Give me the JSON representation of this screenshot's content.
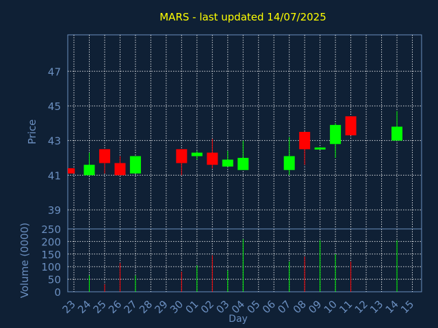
{
  "chart_data": [
    {
      "type": "candlestick",
      "title": "MARS - last updated 14/07/2025",
      "ylabel": "Price",
      "ylim": [
        37.9,
        49.1
      ],
      "yticks": [
        39,
        41,
        43,
        45,
        47
      ],
      "grid": true,
      "colors": {
        "up": "#00ff00",
        "down": "#ff0000",
        "title": "#ffff00",
        "label": "#6b8fc0",
        "background": "#0f2035",
        "grid": "#ffffff"
      },
      "candles": [
        {
          "x": 22.7,
          "open": 41.4,
          "high": 41.4,
          "low": 41.1,
          "close": 41.1
        },
        {
          "x": 24,
          "open": 41.0,
          "high": 42.3,
          "low": 41.0,
          "close": 41.6
        },
        {
          "x": 25,
          "open": 42.5,
          "high": 42.5,
          "low": 41.1,
          "close": 41.7
        },
        {
          "x": 26,
          "open": 41.7,
          "high": 42.1,
          "low": 41.0,
          "close": 41.0
        },
        {
          "x": 27,
          "open": 41.1,
          "high": 42.1,
          "low": 41.1,
          "close": 42.1
        },
        {
          "x": 30,
          "open": 42.5,
          "high": 42.5,
          "low": 41.0,
          "close": 41.7
        },
        {
          "x": 31,
          "open": 42.1,
          "high": 42.4,
          "low": 41.9,
          "close": 42.3
        },
        {
          "x": 32,
          "open": 42.3,
          "high": 43.1,
          "low": 41.4,
          "close": 41.6
        },
        {
          "x": 33,
          "open": 41.5,
          "high": 42.4,
          "low": 41.5,
          "close": 41.9
        },
        {
          "x": 34,
          "open": 41.3,
          "high": 43.0,
          "low": 41.3,
          "close": 42.0
        },
        {
          "x": 37,
          "open": 41.3,
          "high": 43.2,
          "low": 41.0,
          "close": 42.1
        },
        {
          "x": 38,
          "open": 43.5,
          "high": 43.5,
          "low": 41.6,
          "close": 42.5
        },
        {
          "x": 39,
          "open": 42.5,
          "high": 42.6,
          "low": 42.5,
          "close": 42.6
        },
        {
          "x": 40,
          "open": 42.8,
          "high": 44.0,
          "low": 42.0,
          "close": 43.9
        },
        {
          "x": 41,
          "open": 44.4,
          "high": 44.4,
          "low": 43.3,
          "close": 43.3
        },
        {
          "x": 44,
          "open": 43.0,
          "high": 44.7,
          "low": 43.0,
          "close": 43.8
        }
      ]
    },
    {
      "type": "bar",
      "ylabel": "Volume (0000)",
      "xlabel": "Day",
      "ylim": [
        0,
        250
      ],
      "yticks": [
        0,
        50,
        100,
        150,
        200,
        250
      ],
      "xlim": [
        22.6,
        45.6
      ],
      "xticks": [
        23,
        24,
        25,
        26,
        27,
        28,
        29,
        30,
        31,
        32,
        33,
        34,
        35,
        36,
        37,
        38,
        39,
        40,
        41,
        42,
        43,
        44,
        45
      ],
      "categories": [
        "23",
        "24",
        "25",
        "26",
        "27",
        "28",
        "29",
        "30",
        "01",
        "02",
        "03",
        "04",
        "05",
        "06",
        "07",
        "08",
        "09",
        "10",
        "11",
        "12",
        "13",
        "14",
        "15"
      ],
      "bars": [
        {
          "x": 24,
          "value": 65,
          "dir": "up"
        },
        {
          "x": 25,
          "value": 30,
          "dir": "down"
        },
        {
          "x": 26,
          "value": 115,
          "dir": "down"
        },
        {
          "x": 27,
          "value": 65,
          "dir": "up"
        },
        {
          "x": 30,
          "value": 80,
          "dir": "down"
        },
        {
          "x": 31,
          "value": 105,
          "dir": "up"
        },
        {
          "x": 32,
          "value": 145,
          "dir": "down"
        },
        {
          "x": 33,
          "value": 85,
          "dir": "up"
        },
        {
          "x": 34,
          "value": 210,
          "dir": "up"
        },
        {
          "x": 37,
          "value": 120,
          "dir": "up"
        },
        {
          "x": 38,
          "value": 140,
          "dir": "down"
        },
        {
          "x": 39,
          "value": 205,
          "dir": "up"
        },
        {
          "x": 40,
          "value": 150,
          "dir": "up"
        },
        {
          "x": 41,
          "value": 120,
          "dir": "down"
        },
        {
          "x": 44,
          "value": 205,
          "dir": "up"
        }
      ]
    }
  ]
}
